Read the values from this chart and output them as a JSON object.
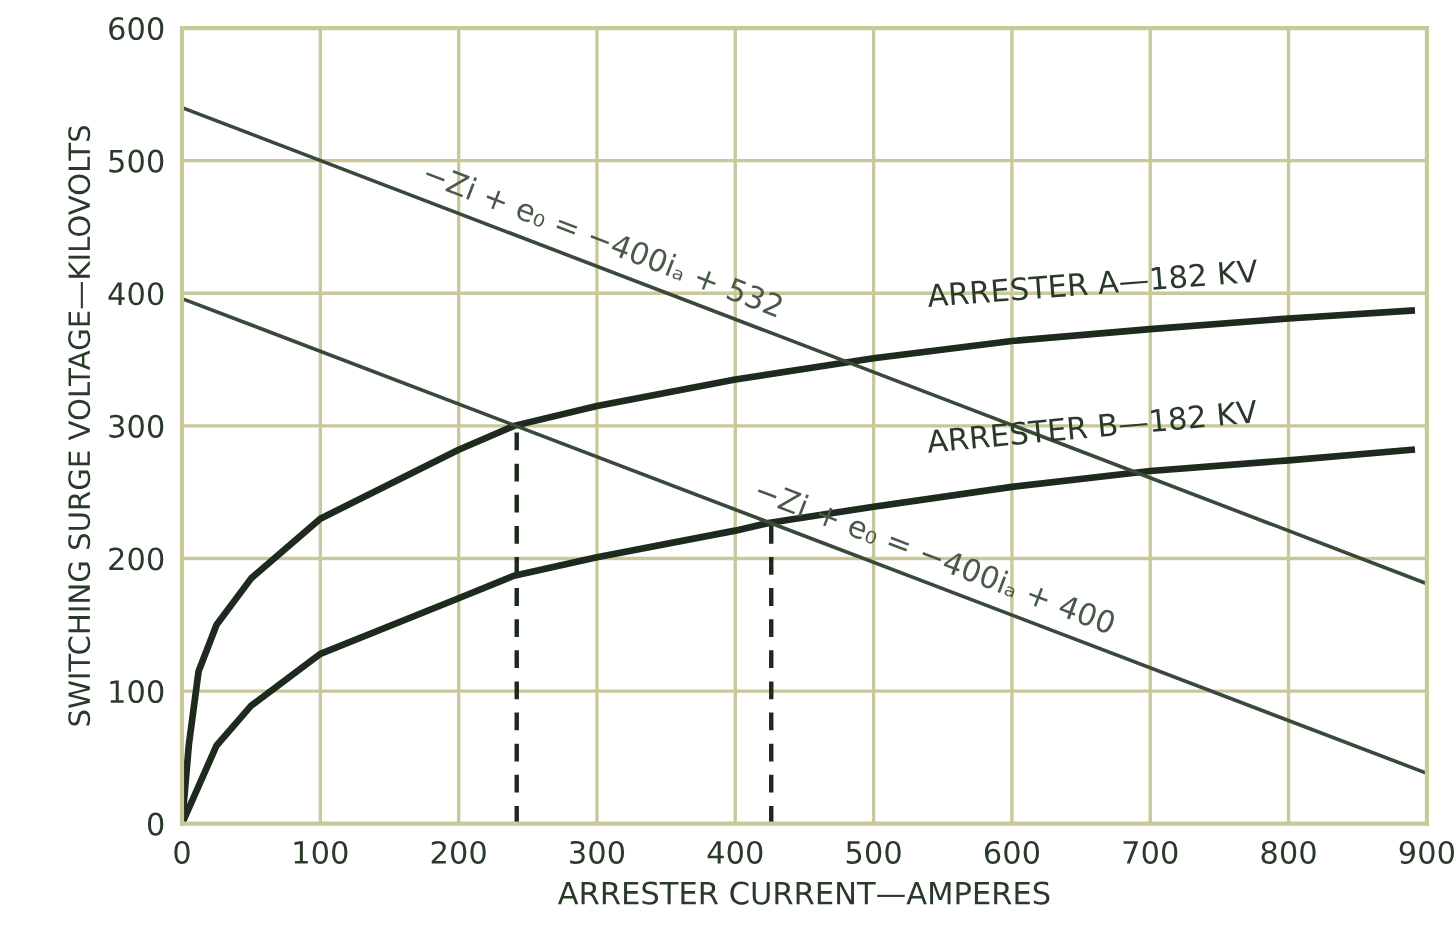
{
  "chart_data": {
    "type": "line",
    "xlabel": "ARRESTER CURRENT—AMPERES",
    "ylabel": "SWITCHING SURGE VOLTAGE—KILOVOLTS",
    "xlim": [
      0,
      900
    ],
    "ylim": [
      0,
      600
    ],
    "xticks": [
      0,
      100,
      200,
      300,
      400,
      500,
      600,
      700,
      800,
      900
    ],
    "yticks": [
      0,
      100,
      200,
      300,
      400,
      500,
      600
    ],
    "grid": true,
    "marker": "none",
    "series": [
      {
        "name": "ARRESTER A—182 KV",
        "color": "#1e2a1e",
        "line_style": "solid",
        "x": [
          0,
          5,
          12,
          25,
          50,
          100,
          200,
          240,
          300,
          400,
          500,
          600,
          700,
          800,
          889
        ],
        "values": [
          0,
          60,
          115,
          150,
          185,
          230,
          282,
          300,
          315,
          335,
          351,
          364,
          373,
          381,
          387
        ]
      },
      {
        "name": "ARRESTER B—182 KV",
        "color": "#1e2a1e",
        "line_style": "solid",
        "x": [
          0,
          25,
          50,
          100,
          200,
          240,
          300,
          400,
          425,
          500,
          600,
          700,
          800,
          889
        ],
        "values": [
          0,
          59,
          89,
          128,
          170,
          187,
          201,
          221,
          227,
          239,
          254,
          266,
          274,
          282
        ]
      },
      {
        "color": "#3a4a3a",
        "line_style": "solid",
        "x": [
          0,
          900
        ],
        "values": [
          540,
          181
        ]
      },
      {
        "color": "#3a4a3a",
        "line_style": "solid",
        "x": [
          0,
          900
        ],
        "values": [
          396,
          38
        ]
      },
      {
        "color": "#1e2a1e",
        "line_style": "dashed",
        "x": [
          242,
          242
        ],
        "values": [
          0,
          300
        ]
      },
      {
        "color": "#1e2a1e",
        "line_style": "dashed",
        "x": [
          426,
          426
        ],
        "values": [
          0,
          227
        ]
      }
    ],
    "annotations": [
      {
        "text": "−Zi + e₀ = −400iₐ + 532",
        "x": 300,
        "y": 420
      },
      {
        "text": "−Zi + e₀ = −400iₐ + 400",
        "x": 540,
        "y": 181
      }
    ]
  }
}
